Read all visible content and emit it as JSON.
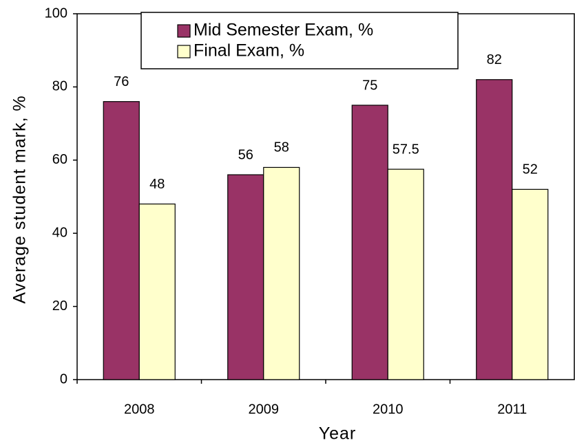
{
  "chart_data": {
    "type": "bar",
    "categories": [
      "2008",
      "2009",
      "2010",
      "2011"
    ],
    "series": [
      {
        "name": "Mid Semester Exam, %",
        "color": "#993366",
        "values": [
          76,
          56,
          75,
          82
        ]
      },
      {
        "name": "Final Exam, %",
        "color": "#ffffcc",
        "values": [
          48,
          58,
          57.5,
          52
        ]
      }
    ],
    "xlabel": "Year",
    "ylabel": "Average student mark, %",
    "ylim": [
      0,
      100
    ],
    "yticks": [
      0,
      20,
      40,
      60,
      80,
      100
    ]
  }
}
